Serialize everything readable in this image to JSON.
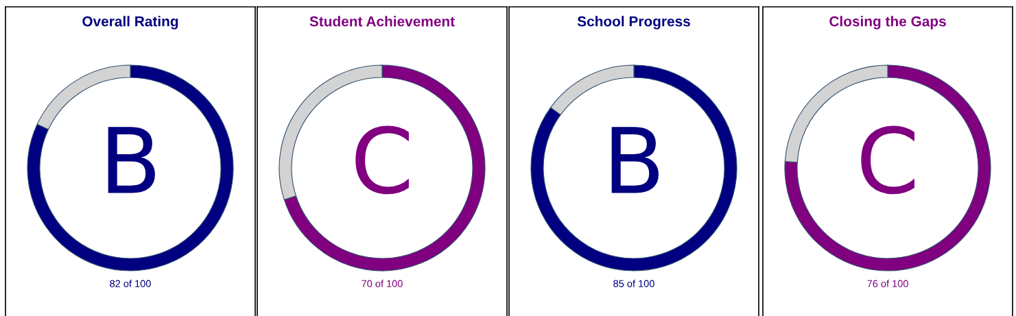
{
  "chart_data": [
    {
      "type": "donut",
      "title": "Overall Rating",
      "categories": [
        null,
        null
      ],
      "values": [
        82,
        18
      ],
      "colors": [
        "#000080",
        "#d3d3d3"
      ],
      "annotations": [
        "B",
        "82 of 100"
      ]
    },
    {
      "type": "donut",
      "title": "Student Achievement",
      "categories": [
        null,
        null
      ],
      "values": [
        70,
        30
      ],
      "colors": [
        "#800080",
        "#d3d3d3"
      ],
      "annotations": [
        "C",
        "70 of 100"
      ]
    },
    {
      "type": "donut",
      "title": "School Progress",
      "categories": [
        null,
        null
      ],
      "values": [
        85,
        15
      ],
      "colors": [
        "#000080",
        "#d3d3d3"
      ],
      "annotations": [
        "B",
        "85 of 100"
      ]
    },
    {
      "type": "donut",
      "title": "Closing the Gaps",
      "categories": [
        null,
        null
      ],
      "values": [
        76,
        24
      ],
      "colors": [
        "#800080",
        "#d3d3d3"
      ],
      "annotations": [
        "C",
        "76 of 100"
      ]
    }
  ]
}
